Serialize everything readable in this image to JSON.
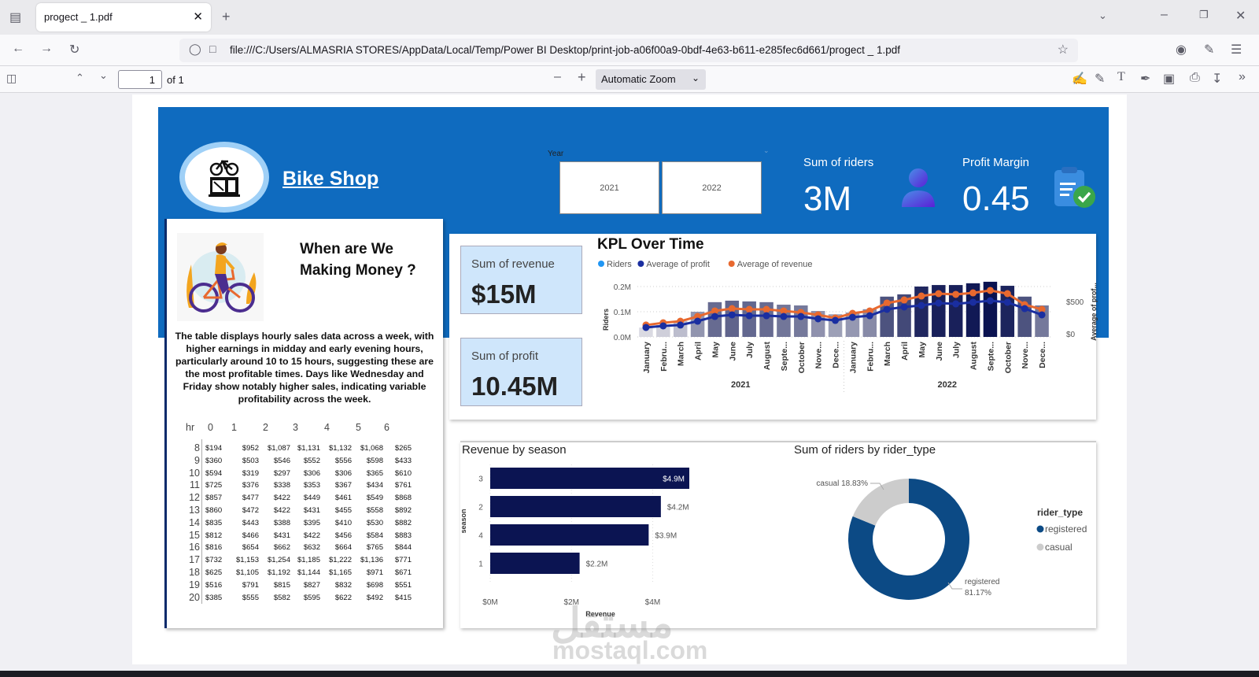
{
  "browser": {
    "tab_title": "progect _ 1.pdf",
    "url": "file:///C:/Users/ALMASRIA STORES/AppData/Local/Temp/Power BI Desktop/print-job-a06f00a9-0bdf-4e63-b611-e285fec6d661/progect _ 1.pdf",
    "page_number": "1",
    "page_count": "of 1",
    "zoom": "Automatic Zoom"
  },
  "header": {
    "title": "Bike Shop",
    "slicer_label": "Year",
    "slicer_options": [
      "2021",
      "2022"
    ],
    "kpi_riders_label": "Sum of riders",
    "kpi_riders_value": "3M",
    "kpi_margin_label": "Profit Margin",
    "kpi_margin_value": "0.45"
  },
  "left_panel": {
    "heading_line1": "When are We",
    "heading_line2": "Making Money ?",
    "description": "The table displays hourly sales data across a week, with higher earnings in midday and early evening hours, particularly around 10 to 15 hours, suggesting these are the most profitable times. Days like Wednesday and Friday show notably higher sales, indicating variable profitability across the week.",
    "table": {
      "row_header": "hr",
      "columns": [
        "0",
        "1",
        "2",
        "3",
        "4",
        "5",
        "6"
      ],
      "rows": [
        {
          "hr": "8",
          "values": [
            "$194",
            "$952",
            "$1,087",
            "$1,131",
            "$1,132",
            "$1,068",
            "$265"
          ]
        },
        {
          "hr": "9",
          "values": [
            "$360",
            "$503",
            "$546",
            "$552",
            "$556",
            "$598",
            "$433"
          ]
        },
        {
          "hr": "10",
          "values": [
            "$594",
            "$319",
            "$297",
            "$306",
            "$306",
            "$365",
            "$610"
          ]
        },
        {
          "hr": "11",
          "values": [
            "$725",
            "$376",
            "$338",
            "$353",
            "$367",
            "$434",
            "$761"
          ]
        },
        {
          "hr": "12",
          "values": [
            "$857",
            "$477",
            "$422",
            "$449",
            "$461",
            "$549",
            "$868"
          ]
        },
        {
          "hr": "13",
          "values": [
            "$860",
            "$472",
            "$422",
            "$431",
            "$455",
            "$558",
            "$892"
          ]
        },
        {
          "hr": "14",
          "values": [
            "$835",
            "$443",
            "$388",
            "$395",
            "$410",
            "$530",
            "$882"
          ]
        },
        {
          "hr": "15",
          "values": [
            "$812",
            "$466",
            "$431",
            "$422",
            "$456",
            "$584",
            "$883"
          ]
        },
        {
          "hr": "16",
          "values": [
            "$816",
            "$654",
            "$662",
            "$632",
            "$664",
            "$765",
            "$844"
          ]
        },
        {
          "hr": "17",
          "values": [
            "$732",
            "$1,153",
            "$1,254",
            "$1,185",
            "$1,222",
            "$1,136",
            "$771"
          ]
        },
        {
          "hr": "18",
          "values": [
            "$625",
            "$1,105",
            "$1,192",
            "$1,144",
            "$1,165",
            "$971",
            "$671"
          ]
        },
        {
          "hr": "19",
          "values": [
            "$516",
            "$791",
            "$815",
            "$827",
            "$832",
            "$698",
            "$551"
          ]
        },
        {
          "hr": "20",
          "values": [
            "$385",
            "$555",
            "$582",
            "$595",
            "$622",
            "$492",
            "$415"
          ]
        }
      ]
    }
  },
  "cards": {
    "revenue_label": "Sum of revenue",
    "revenue_value": "$15M",
    "profit_label": "Sum of profit",
    "profit_value": "10.45M"
  },
  "watermark": {
    "arabic": "مستقل",
    "latin": "mostaql.com"
  },
  "chart_data": [
    {
      "type": "bar",
      "title": "KPL Over Time",
      "legend": [
        "Riders",
        "Average of profit",
        "Average of revenue"
      ],
      "legend_colors": [
        "#2196f3",
        "#1a2ea0",
        "#e8692f"
      ],
      "legend_position": "top-left",
      "ylabel": "Riders",
      "y2label": "Average of prof...",
      "yticks": [
        "0.0M",
        "0.1M",
        "0.2M"
      ],
      "y2ticks": [
        "$0",
        "$500"
      ],
      "ylim": [
        0,
        0.2
      ],
      "y2lim": [
        0,
        500
      ],
      "groups": [
        "2021",
        "2022"
      ],
      "categories": [
        "January",
        "Febru...",
        "March",
        "April",
        "May",
        "June",
        "July",
        "August",
        "Septe...",
        "October",
        "Nove...",
        "Dece...",
        "January",
        "Febru...",
        "March",
        "April",
        "May",
        "June",
        "July",
        "August",
        "Septe...",
        "October",
        "Nove...",
        "Dece..."
      ],
      "series": [
        {
          "name": "Riders",
          "kind": "bar",
          "values": [
            0.037,
            0.047,
            0.063,
            0.1,
            0.138,
            0.144,
            0.141,
            0.138,
            0.128,
            0.125,
            0.103,
            0.09,
            0.097,
            0.11,
            0.16,
            0.169,
            0.2,
            0.206,
            0.206,
            0.213,
            0.219,
            0.203,
            0.16,
            0.125
          ]
        },
        {
          "name": "Average of profit",
          "kind": "line",
          "axis": "y2",
          "values": [
            98,
            122,
            135,
            195,
            268,
            293,
            280,
            280,
            268,
            268,
            232,
            207,
            256,
            280,
            378,
            415,
            439,
            476,
            463,
            488,
            512,
            488,
            390,
            293
          ]
        },
        {
          "name": "Average of revenue",
          "kind": "line",
          "axis": "y2",
          "values": [
            135,
            170,
            195,
            268,
            354,
            390,
            378,
            378,
            354,
            330,
            293,
            244,
            317,
            354,
            476,
            524,
            585,
            622,
            610,
            634,
            671,
            622,
            451,
            378
          ]
        }
      ]
    },
    {
      "type": "bar",
      "orientation": "horizontal",
      "title": "Revenue by season",
      "xlabel": "Revenue",
      "ylabel": "season",
      "categories": [
        "3",
        "2",
        "4",
        "1"
      ],
      "values": [
        4.9,
        4.2,
        3.9,
        2.2
      ],
      "data_labels": [
        "$4.9M",
        "$4.2M",
        "$3.9M",
        "$2.2M"
      ],
      "xticks": [
        "$0M",
        "$2M",
        "$4M"
      ],
      "xlim": [
        0,
        5
      ],
      "color": "#0b1452"
    },
    {
      "type": "pie",
      "donut": true,
      "title": "Sum of riders by rider_type",
      "legend_title": "rider_type",
      "legend_position": "right",
      "categories": [
        "registered",
        "casual"
      ],
      "values": [
        81.17,
        18.83
      ],
      "data_labels": [
        "registered 81.17%",
        "casual 18.83%"
      ],
      "colors": [
        "#0c4a85",
        "#cccccc"
      ]
    }
  ]
}
